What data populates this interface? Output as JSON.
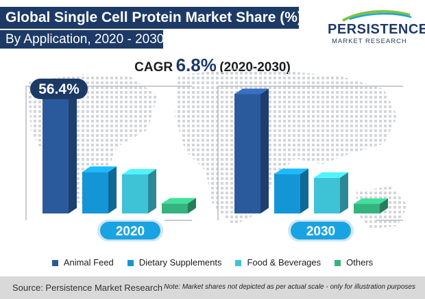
{
  "title": {
    "line1": "Global Single Cell Protein Market Share (%)",
    "line2": "By Application, 2020 - 2030"
  },
  "logo": {
    "name": "PERSISTENCE",
    "sub": "MARKET RESEARCH"
  },
  "cagr": {
    "label": "CAGR",
    "value": "6.8%",
    "period": "(2020-2030)"
  },
  "colors": {
    "title_bg": "#1d3a66",
    "animal_feed": "#2b5a9c",
    "dietary_supplements": "#1496d6",
    "food_beverages": "#3ec3d6",
    "others": "#35b37f",
    "year_badge": "#1aa3e2"
  },
  "chart_data": [
    {
      "type": "bar",
      "panel": "2020",
      "categories": [
        "Animal Feed",
        "Dietary Supplements",
        "Food & Beverages",
        "Others"
      ],
      "values": [
        56.4,
        20.0,
        18.8,
        4.8
      ],
      "data_labels": {
        "Animal Feed": "56.4%"
      },
      "year_label": "2020"
    },
    {
      "type": "bar",
      "panel": "2030",
      "categories": [
        "Animal Feed",
        "Dietary Supplements",
        "Food & Beverages",
        "Others"
      ],
      "values": [
        57.5,
        19.0,
        17.2,
        4.6
      ],
      "year_label": "2030"
    }
  ],
  "legend": {
    "entries": [
      {
        "label": "Animal Feed",
        "color": "#2b5a9c"
      },
      {
        "label": "Dietary Supplements",
        "color": "#1496d6"
      },
      {
        "label": "Food & Beverages",
        "color": "#3ec3d6"
      },
      {
        "label": "Others",
        "color": "#35b37f"
      }
    ]
  },
  "footer": {
    "source": "Source: Persistence Market Research",
    "note": "Note: Market shares not depicted as per actual scale - only for illustration purposes"
  }
}
